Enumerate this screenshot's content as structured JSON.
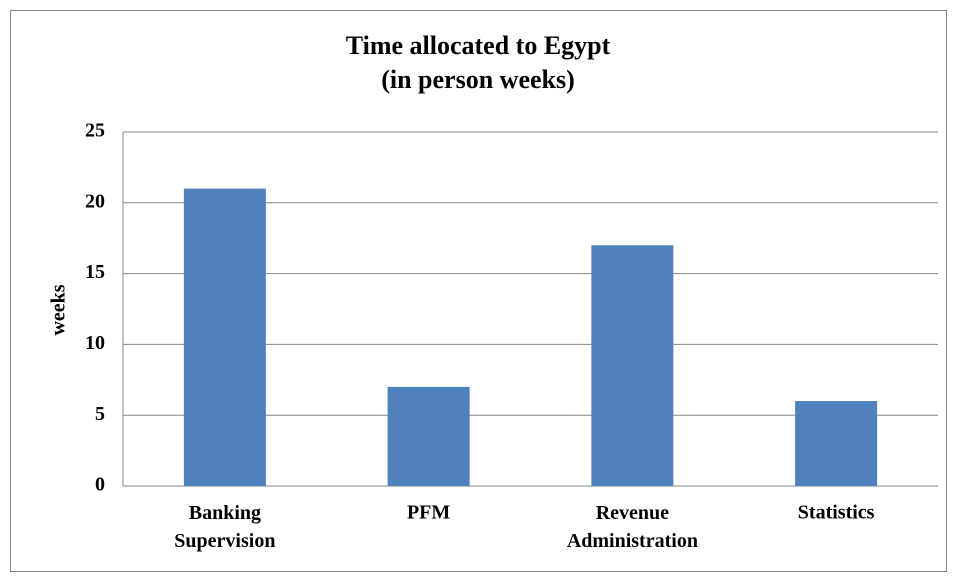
{
  "chart_data": {
    "type": "bar",
    "title": "Time allocated  to Egypt",
    "subtitle": "(in person weeks)",
    "y_label": "weeks",
    "categories": [
      "Banking Supervision",
      "PFM",
      "Revenue Administration",
      "Statistics"
    ],
    "values": [
      21,
      7,
      17,
      6
    ],
    "color": "#4f81bd",
    "ylim": [
      0,
      25
    ],
    "yticks": [
      0,
      5,
      10,
      15,
      20,
      25
    ],
    "grid": true
  }
}
